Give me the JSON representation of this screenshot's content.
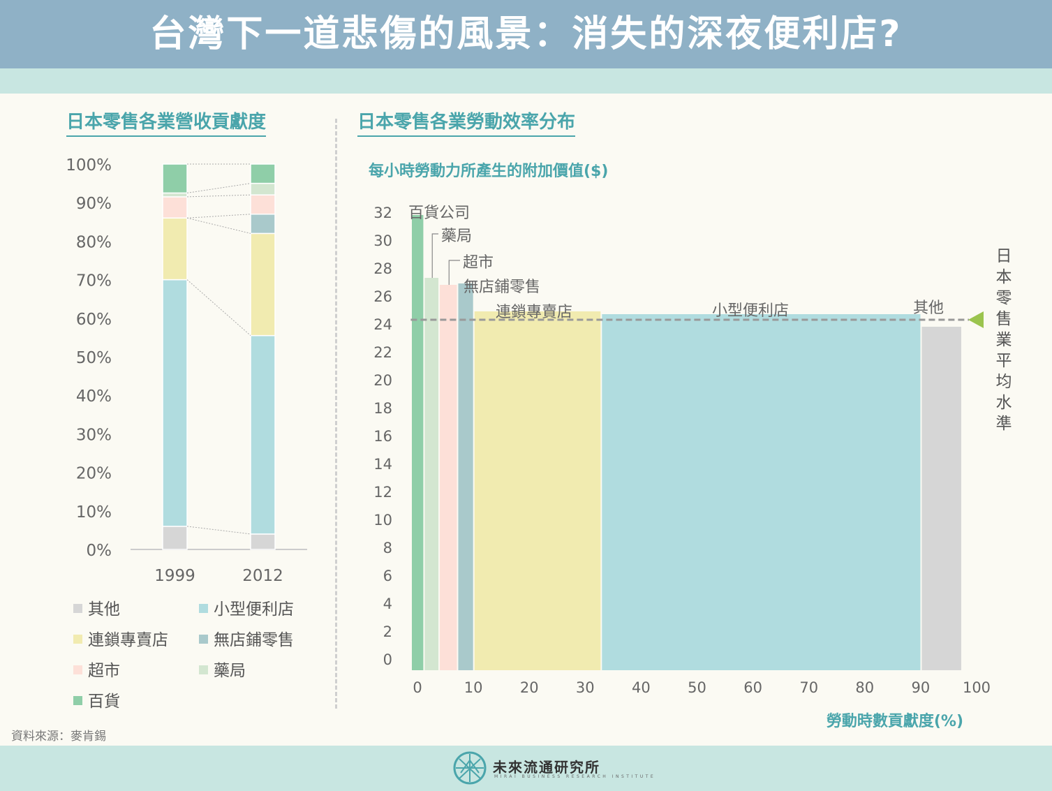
{
  "header": {
    "title": "台灣下一道悲傷的風景：消失的深夜便利店?"
  },
  "left": {
    "title": "日本零售各業營收貢獻度"
  },
  "right": {
    "title": "日本零售各業勞動效率分布"
  },
  "colors": {
    "百貨": "#8fcea8",
    "藥局": "#d3e6d0",
    "超市": "#fde0d8",
    "無店鋪零售": "#a9c9cb",
    "連鎖專賣店": "#f1ebb0",
    "小型便利店": "#b0dcdf",
    "其他": "#d6d6d6",
    "average_line": "#999999",
    "average_marker": "#9bc44e",
    "accent": "#4aa5ab"
  },
  "legend": {
    "items": [
      {
        "label": "其他",
        "key": "其他"
      },
      {
        "label": "小型便利店",
        "key": "小型便利店"
      },
      {
        "label": "連鎖專賣店",
        "key": "連鎖專賣店"
      },
      {
        "label": "無店鋪零售",
        "key": "無店鋪零售"
      },
      {
        "label": "超市",
        "key": "超市"
      },
      {
        "label": "藥局",
        "key": "藥局"
      },
      {
        "label": "百貨",
        "key": "百貨"
      }
    ]
  },
  "source": "資料來源：麥肯錫",
  "logo": {
    "name": "未來流通研究所",
    "subtitle": "MIRAI BUSINESS RESEARCH INSTITUTE"
  },
  "average_label": "日本零售業平均水準",
  "chart_data": [
    {
      "type": "bar",
      "stacked": true,
      "title": "日本零售各業營收貢獻度",
      "categories": [
        "1999",
        "2012"
      ],
      "ylim": [
        0,
        100
      ],
      "yticks": [
        "0%",
        "10%",
        "20%",
        "30%",
        "40%",
        "50%",
        "60%",
        "70%",
        "80%",
        "90%",
        "100%"
      ],
      "series": [
        {
          "name": "其他",
          "values": [
            6,
            4
          ]
        },
        {
          "name": "小型便利店",
          "values": [
            64,
            51.5
          ]
        },
        {
          "name": "連鎖專賣店",
          "values": [
            16,
            26.5
          ]
        },
        {
          "name": "無店鋪零售",
          "values": [
            0,
            5
          ]
        },
        {
          "name": "超市",
          "values": [
            5.5,
            5
          ]
        },
        {
          "name": "藥局",
          "values": [
            1,
            3
          ]
        },
        {
          "name": "百貨",
          "values": [
            7.5,
            5
          ]
        }
      ]
    },
    {
      "type": "bar",
      "variable_width": true,
      "title": "日本零售各業勞動效率分布",
      "ylabel": "每小時勞動力所產生的附加價值($)",
      "xlabel": "勞動時數貢獻度(%)",
      "ylim": [
        0,
        32
      ],
      "xlim": [
        0,
        100
      ],
      "yticks": [
        0,
        2,
        4,
        6,
        8,
        10,
        12,
        14,
        16,
        18,
        20,
        22,
        24,
        26,
        28,
        30,
        32
      ],
      "xticks": [
        0,
        10,
        20,
        30,
        40,
        50,
        60,
        70,
        80,
        90,
        100
      ],
      "average": 25.1,
      "bars": [
        {
          "name": "百貨公司",
          "key": "百貨",
          "x0": -1,
          "x1": 1.3,
          "value": 32.6
        },
        {
          "name": "藥局",
          "key": "藥局",
          "x0": 1.3,
          "x1": 4,
          "value": 28.1
        },
        {
          "name": "超市",
          "key": "超市",
          "x0": 4,
          "x1": 7.3,
          "value": 27.6
        },
        {
          "name": "無店鋪零售",
          "key": "無店鋪零售",
          "x0": 7.3,
          "x1": 10.2,
          "value": 27.7
        },
        {
          "name": "連鎖專賣店",
          "key": "連鎖專賣店",
          "x0": 10.2,
          "x1": 33,
          "value": 25.7
        },
        {
          "name": "小型便利店",
          "key": "小型便利店",
          "x0": 33,
          "x1": 90.2,
          "value": 25.5
        },
        {
          "name": "其他",
          "key": "其他",
          "x0": 90.2,
          "x1": 97.5,
          "value": 24.6
        }
      ]
    }
  ]
}
